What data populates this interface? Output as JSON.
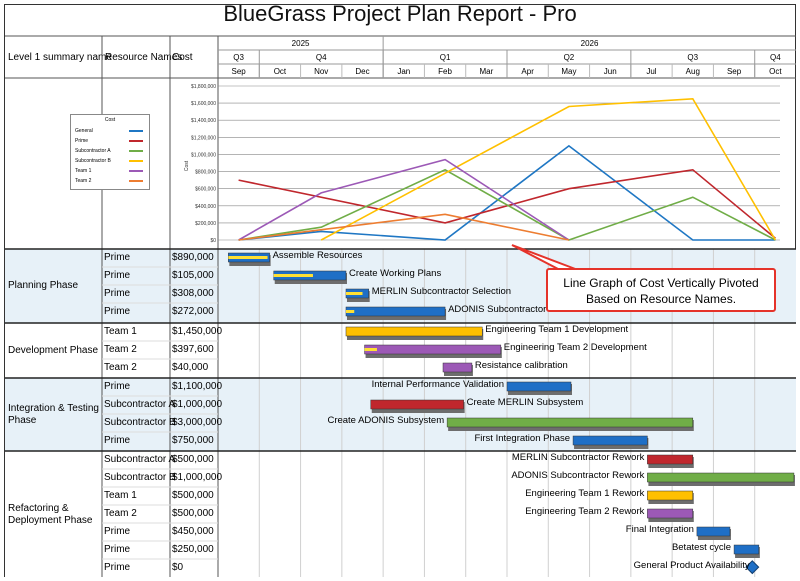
{
  "report": {
    "title": "BlueGrass Project Plan Report - Pro"
  },
  "columns": {
    "summary": "Level 1 summary name",
    "resource": "Resource Names",
    "cost": "Cost"
  },
  "timeline": {
    "years": [
      {
        "label": "2025",
        "start": 0,
        "span": 4
      },
      {
        "label": "2026",
        "start": 4,
        "span": 10
      }
    ],
    "quarters": [
      {
        "label": "Q3",
        "start": 0,
        "span": 1
      },
      {
        "label": "Q4",
        "start": 1,
        "span": 3
      },
      {
        "label": "Q1",
        "start": 4,
        "span": 3
      },
      {
        "label": "Q2",
        "start": 7,
        "span": 3
      },
      {
        "label": "Q3",
        "start": 10,
        "span": 3
      },
      {
        "label": "Q4",
        "start": 13,
        "span": 1
      }
    ],
    "months": [
      "Sep",
      "Oct",
      "Nov",
      "Dec",
      "Jan",
      "Feb",
      "Mar",
      "Apr",
      "May",
      "Jun",
      "Jul",
      "Aug",
      "Sep",
      "Oct"
    ]
  },
  "chart_data": {
    "type": "line",
    "legend_title": "Cost",
    "legend_position": "left",
    "x": [
      "Sep",
      "Oct",
      "Nov",
      "Dec",
      "Jan",
      "Feb",
      "Mar",
      "Apr",
      "May",
      "Jun",
      "Jul",
      "Aug",
      "Sep",
      "Oct"
    ],
    "ylabel": "Cost",
    "ylim": [
      0,
      1800000
    ],
    "yticks": [
      "$0",
      "$200,000",
      "$400,000",
      "$600,000",
      "$800,000",
      "$1,000,000",
      "$1,200,000",
      "$1,400,000",
      "$1,600,000",
      "$1,800,000"
    ],
    "grid": true,
    "series": [
      {
        "name": "General",
        "color": "#1f77c4",
        "points": [
          [
            0,
            0
          ],
          [
            2,
            100000
          ],
          [
            5,
            0
          ],
          [
            8,
            1100000
          ],
          [
            11,
            0
          ],
          [
            13,
            0
          ]
        ]
      },
      {
        "name": "Prime",
        "color": "#c0272d",
        "points": [
          [
            0,
            700000
          ],
          [
            5,
            200000
          ],
          [
            8,
            600000
          ],
          [
            11,
            820000
          ],
          [
            13,
            20000
          ]
        ]
      },
      {
        "name": "Subcontractor A",
        "color": "#70ad47",
        "points": [
          [
            0,
            0
          ],
          [
            2,
            150000
          ],
          [
            5,
            820000
          ],
          [
            8,
            0
          ],
          [
            11,
            500000
          ],
          [
            13,
            0
          ]
        ]
      },
      {
        "name": "Subcontractor B",
        "color": "#ffc000",
        "points": [
          [
            2,
            0
          ],
          [
            8,
            1560000
          ],
          [
            11,
            1650000
          ],
          [
            13,
            0
          ]
        ]
      },
      {
        "name": "Team 1",
        "color": "#9c59b6",
        "points": [
          [
            0,
            0
          ],
          [
            2,
            550000
          ],
          [
            5,
            940000
          ],
          [
            8,
            0
          ]
        ]
      },
      {
        "name": "Team 2",
        "color": "#ed7d31",
        "points": [
          [
            0,
            0
          ],
          [
            5,
            300000
          ],
          [
            8,
            0
          ]
        ]
      }
    ]
  },
  "callout": {
    "text": "Line Graph of Cost Vertically Pivoted Based on Resource Names."
  },
  "phases": [
    {
      "name": "Planning Phase",
      "rows": [
        {
          "resource": "Prime",
          "cost": "$890,000",
          "task": "Assemble Resources",
          "bar": [
            0.25,
            1.25
          ],
          "color": "#1f6fc6",
          "progress": [
            0.25,
            1.2
          ],
          "label_side": "right"
        },
        {
          "resource": "Prime",
          "cost": "$105,000",
          "task": "Create Working Plans",
          "bar": [
            1.35,
            3.1
          ],
          "color": "#1f6fc6",
          "progress": [
            1.35,
            2.3
          ],
          "label_side": "right"
        },
        {
          "resource": "Prime",
          "cost": "$308,000",
          "task": "MERLIN Subcontractor Selection",
          "bar": [
            3.1,
            3.65
          ],
          "color": "#1f6fc6",
          "progress": [
            3.1,
            3.5
          ],
          "label_side": "right"
        },
        {
          "resource": "Prime",
          "cost": "$272,000",
          "task": "ADONIS Subcontractor Selection",
          "bar": [
            3.1,
            5.5
          ],
          "color": "#1f6fc6",
          "progress": [
            3.1,
            3.3
          ],
          "label_side": "right"
        }
      ]
    },
    {
      "name": "Development Phase",
      "rows": [
        {
          "resource": "Team 1",
          "cost": "$1,450,000",
          "task": "Engineering Team 1 Development",
          "bar": [
            3.1,
            6.4
          ],
          "color": "#ffc000",
          "progress": null,
          "label_side": "right"
        },
        {
          "resource": "Team 2",
          "cost": "$397,600",
          "task": "Engineering Team 2 Development",
          "bar": [
            3.55,
            6.85
          ],
          "color": "#9c59b6",
          "progress": [
            3.55,
            3.85
          ],
          "label_side": "right"
        },
        {
          "resource": "Team 2",
          "cost": "$40,000",
          "task": "Resistance calibration",
          "bar": [
            5.45,
            6.15
          ],
          "color": "#9c59b6",
          "progress": null,
          "label_side": "right"
        }
      ]
    },
    {
      "name": "Integration & Testing Phase",
      "rows": [
        {
          "resource": "Prime",
          "cost": "$1,100,000",
          "task": "Internal Performance Validation",
          "bar": [
            7.0,
            8.55
          ],
          "color": "#1f6fc6",
          "progress": null,
          "label_side": "left"
        },
        {
          "resource": "Subcontractor A",
          "cost": "$1,000,000",
          "task": "Create MERLIN Subsystem",
          "bar": [
            3.7,
            5.95
          ],
          "color": "#c0272d",
          "progress": null,
          "label_side": "right"
        },
        {
          "resource": "Subcontractor B",
          "cost": "$3,000,000",
          "task": "Create ADONIS Subsystem",
          "bar": [
            5.55,
            11.5
          ],
          "color": "#70ad47",
          "progress": null,
          "label_side": "left"
        },
        {
          "resource": "Prime",
          "cost": "$750,000",
          "task": "First Integration Phase",
          "bar": [
            8.6,
            10.4
          ],
          "color": "#1f6fc6",
          "progress": null,
          "label_side": "left"
        }
      ]
    },
    {
      "name": "Refactoring & Deployment Phase",
      "rows": [
        {
          "resource": "Subcontractor A",
          "cost": "$500,000",
          "task": "MERLIN Subcontractor Rework",
          "bar": [
            10.4,
            11.5
          ],
          "color": "#c0272d",
          "progress": null,
          "label_side": "left"
        },
        {
          "resource": "Subcontractor B",
          "cost": "$1,000,000",
          "task": "ADONIS Subcontractor Rework",
          "bar": [
            10.4,
            13.95
          ],
          "color": "#70ad47",
          "progress": null,
          "label_side": "left"
        },
        {
          "resource": "Team 1",
          "cost": "$500,000",
          "task": "Engineering Team 1 Rework",
          "bar": [
            10.4,
            11.5
          ],
          "color": "#ffc000",
          "progress": null,
          "label_side": "left"
        },
        {
          "resource": "Team 2",
          "cost": "$500,000",
          "task": "Engineering Team 2 Rework",
          "bar": [
            10.4,
            11.5
          ],
          "color": "#9c59b6",
          "progress": null,
          "label_side": "left"
        },
        {
          "resource": "Prime",
          "cost": "$450,000",
          "task": "Final Integration",
          "bar": [
            11.6,
            12.4
          ],
          "color": "#1f6fc6",
          "progress": null,
          "label_side": "left"
        },
        {
          "resource": "Prime",
          "cost": "$250,000",
          "task": "Betatest cycle",
          "bar": [
            12.5,
            13.1
          ],
          "color": "#1f6fc6",
          "progress": null,
          "label_side": "left"
        },
        {
          "resource": "Prime",
          "cost": "$0",
          "task": "General Product Availability",
          "bar": [
            12.95,
            12.95
          ],
          "color": "#1f6fc6",
          "progress": null,
          "label_side": "left",
          "milestone": true
        }
      ]
    }
  ]
}
